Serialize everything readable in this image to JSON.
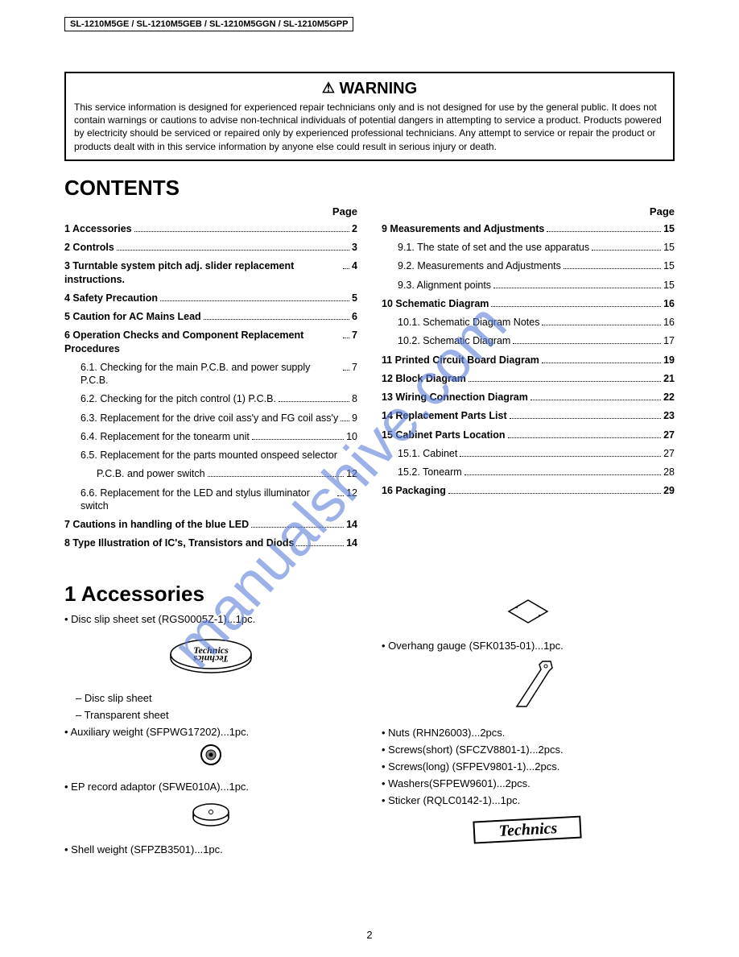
{
  "model_box": "SL-1210M5GE / SL-1210M5GEB / SL-1210M5GGN / SL-1210M5GPP",
  "warning": {
    "title": "WARNING",
    "body": "This service information is designed for experienced repair technicians only and is not designed for use by the general public. It does not contain warnings or cautions to advise non-technical individuals of potential dangers in attempting to service a product. Products powered by electricity should be serviced or repaired only by experienced professional technicians. Any attempt to service or repair the product or products dealt with in this service information by anyone else could result in serious injury or death."
  },
  "contents_heading": "CONTENTS",
  "page_label": "Page",
  "toc_left": [
    {
      "label": "1 Accessories",
      "page": "2",
      "bold": true
    },
    {
      "label": "2 Controls",
      "page": "3",
      "bold": true
    },
    {
      "label": "3 Turntable system pitch adj. slider replacement instructions.",
      "page": "4",
      "bold": true
    },
    {
      "label": "4 Safety Precaution",
      "page": "5",
      "bold": true
    },
    {
      "label": "5 Caution for AC Mains Lead",
      "page": "6",
      "bold": true
    },
    {
      "label": "6 Operation Checks and Component Replacement Procedures",
      "page": "7",
      "bold": true
    },
    {
      "label": "6.1. Checking for the main P.C.B. and power supply P.C.B.",
      "page": "7",
      "sub": true
    },
    {
      "label": "6.2. Checking for the pitch control (1) P.C.B.",
      "page": "8",
      "sub": true
    },
    {
      "label": "6.3. Replacement for the drive coil ass'y and FG coil ass'y",
      "page": "9",
      "sub": true
    },
    {
      "label": "6.4. Replacement for the tonearm unit",
      "page": "10",
      "sub": true
    },
    {
      "label": "6.5. Replacement for the parts mounted onspeed selector",
      "sub": true,
      "nowrap": false
    },
    {
      "label": "P.C.B. and power switch",
      "page": "12",
      "sub2": true
    },
    {
      "label": "6.6. Replacement for the LED and stylus illuminator switch",
      "page": "12",
      "sub": true
    },
    {
      "label": "7 Cautions in handling of the blue LED",
      "page": "14",
      "bold": true
    },
    {
      "label": "8 Type Illustration of IC's, Transistors and Diods",
      "page": "14",
      "bold": true
    }
  ],
  "toc_right": [
    {
      "label": "9 Measurements and Adjustments",
      "page": "15",
      "bold": true
    },
    {
      "label": "9.1. The state of set and the use apparatus",
      "page": "15",
      "sub": true
    },
    {
      "label": "9.2. Measurements and Adjustments",
      "page": "15",
      "sub": true
    },
    {
      "label": "9.3. Alignment points",
      "page": "15",
      "sub": true
    },
    {
      "label": "10 Schematic Diagram",
      "page": "16",
      "bold": true
    },
    {
      "label": "10.1. Schematic Diagram Notes",
      "page": "16",
      "sub": true
    },
    {
      "label": "10.2. Schematic Diagram",
      "page": "17",
      "sub": true
    },
    {
      "label": "11 Printed Circuit Board Diagram",
      "page": "19",
      "bold": true
    },
    {
      "label": "12 Block Diagram",
      "page": "21",
      "bold": true
    },
    {
      "label": "13 Wiring Connection Diagram",
      "page": "22",
      "bold": true
    },
    {
      "label": "14 Replacement Parts List",
      "page": "23",
      "bold": true
    },
    {
      "label": "15 Cabinet Parts Location",
      "page": "27",
      "bold": true
    },
    {
      "label": "15.1. Cabinet",
      "page": "27",
      "sub": true
    },
    {
      "label": "15.2. Tonearm",
      "page": "28",
      "sub": true
    },
    {
      "label": "16 Packaging",
      "page": "29",
      "bold": true
    }
  ],
  "section1": {
    "heading": "1   Accessories",
    "left": {
      "disc_slip": "Disc slip sheet set (RGS0005Z-1)...1pc.",
      "disc_slip_sheet": "Disc slip sheet",
      "transparent": "Transparent sheet",
      "aux_weight": "Auxiliary weight (SFPWG17202)...1pc.",
      "ep_adaptor": "EP record adaptor (SFWE010A)...1pc.",
      "shell_weight": "Shell weight (SFPZB3501)...1pc."
    },
    "right": {
      "overhang": "Overhang gauge (SFK0135-01)...1pc.",
      "nuts": "Nuts (RHN26003)...2pcs.",
      "screws_short": "Screws(short) (SFCZV8801-1)...2pcs.",
      "screws_long": "Screws(long) (SFPEV9801-1)...2pcs.",
      "washers": "Washers(SFPEW9601)...2pcs.",
      "sticker": "Sticker (RQLC0142-1)...1pc."
    }
  },
  "watermark_text": "manualshive.com",
  "page_number": "2"
}
